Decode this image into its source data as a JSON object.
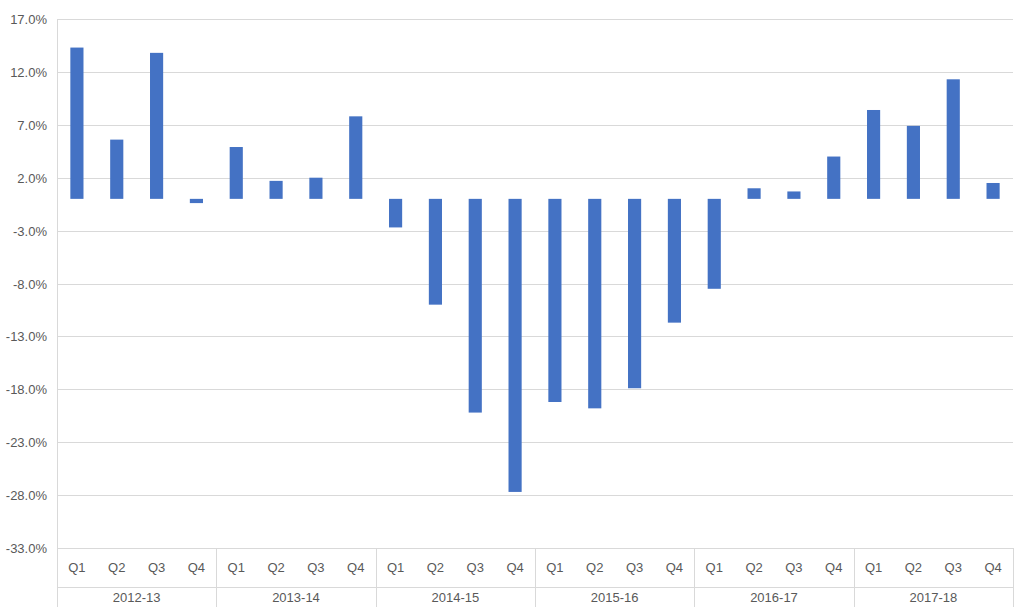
{
  "chart_data": {
    "type": "bar",
    "categories": [
      "Q1",
      "Q2",
      "Q3",
      "Q4",
      "Q1",
      "Q2",
      "Q3",
      "Q4",
      "Q1",
      "Q2",
      "Q3",
      "Q4",
      "Q1",
      "Q2",
      "Q3",
      "Q4",
      "Q1",
      "Q2",
      "Q3",
      "Q4",
      "Q1",
      "Q2",
      "Q3",
      "Q4"
    ],
    "groups": [
      "2012-13",
      "2013-14",
      "2014-15",
      "2015-16",
      "2016-17",
      "2017-18"
    ],
    "values": [
      14.3,
      5.6,
      13.8,
      -0.4,
      4.9,
      1.7,
      2.0,
      7.8,
      -2.7,
      -10.0,
      -20.2,
      -27.7,
      -19.2,
      -19.8,
      -17.9,
      -11.7,
      -8.5,
      1.0,
      0.7,
      4.0,
      8.4,
      6.9,
      11.3,
      1.5
    ],
    "color": "#4472c4",
    "ylim": [
      -33,
      17
    ],
    "yticks": [
      {
        "value": 17,
        "label": "17.0%"
      },
      {
        "value": 12,
        "label": "12.0%"
      },
      {
        "value": 7,
        "label": "7.0%"
      },
      {
        "value": 2,
        "label": "2.0%"
      },
      {
        "value": -3,
        "label": "-3.0%"
      },
      {
        "value": -8,
        "label": "-8.0%"
      },
      {
        "value": -13,
        "label": "-13.0%"
      },
      {
        "value": -18,
        "label": "-18.0%"
      },
      {
        "value": -23,
        "label": "-23.0%"
      },
      {
        "value": -28,
        "label": "-28.0%"
      },
      {
        "value": -33,
        "label": "-33.0%"
      }
    ],
    "grid": true
  }
}
